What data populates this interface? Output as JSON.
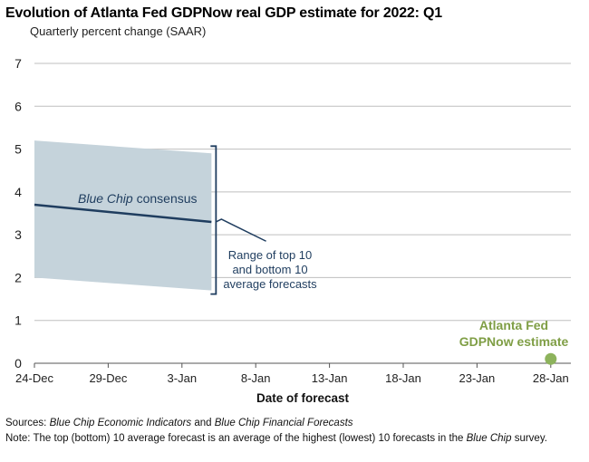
{
  "chart_data": {
    "type": "line",
    "title": "Evolution of Atlanta Fed GDPNow real GDP estimate for 2022: Q1",
    "subtitle": "Quarterly percent change (SAAR)",
    "xlabel": "Date of forecast",
    "ylabel": "",
    "ylim": [
      0,
      7
    ],
    "yticks": [
      0,
      1,
      2,
      3,
      4,
      5,
      6,
      7
    ],
    "xlim": [
      0,
      36
    ],
    "xticks": [
      {
        "pos": 0,
        "label": "24-Dec"
      },
      {
        "pos": 5,
        "label": "29-Dec"
      },
      {
        "pos": 10,
        "label": "3-Jan"
      },
      {
        "pos": 15,
        "label": "8-Jan"
      },
      {
        "pos": 20,
        "label": "13-Jan"
      },
      {
        "pos": 25,
        "label": "18-Jan"
      },
      {
        "pos": 30,
        "label": "23-Jan"
      },
      {
        "pos": 35,
        "label": "28-Jan"
      }
    ],
    "band": {
      "name": "Range of top 10 and bottom 10 average forecasts",
      "x": [
        0,
        12
      ],
      "upper": [
        5.2,
        4.9
      ],
      "lower": [
        2.0,
        1.7
      ]
    },
    "series": [
      {
        "name": "Blue Chip consensus",
        "x": [
          0,
          12
        ],
        "values": [
          3.7,
          3.3
        ],
        "color": "#1f3d5f"
      },
      {
        "name": "Atlanta Fed GDPNow estimate",
        "x": [
          35
        ],
        "values": [
          0.1
        ],
        "color": "#8db35c"
      }
    ],
    "annotations": {
      "consensus_label_prefix": "Blue Chip",
      "consensus_label_suffix": "consensus",
      "range_label": [
        "Range of top 10",
        "and bottom 10",
        "average forecasts"
      ],
      "gdpnow_label": [
        "Atlanta Fed",
        "GDPNow estimate"
      ]
    }
  },
  "colors": {
    "band_fill": "#c5d3db",
    "consensus_line": "#1f3d5f",
    "gdpnow": "#7f9e45",
    "gdpnow_marker": "#8db35c",
    "grid": "#bfbfbf"
  },
  "footnotes": {
    "sources_prefix": "Sources: ",
    "sources_title1": "Blue Chip Economic Indicators",
    "sources_mid": " and ",
    "sources_title2": "Blue Chip Financial Forecasts",
    "note_prefix": "Note: ",
    "note_text": "The top (bottom) 10 average forecast is an average of the highest (lowest) 10 forecasts in the ",
    "note_title": "Blue Chip",
    "note_suffix": " survey."
  }
}
